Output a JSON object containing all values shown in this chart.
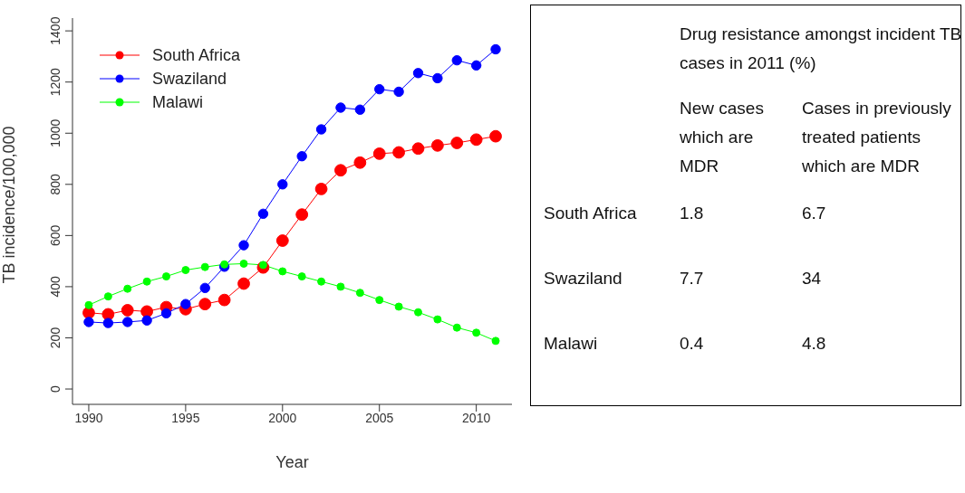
{
  "chart_data": [
    {
      "type": "line",
      "xlabel": "Year",
      "ylabel": "TB incidence/100,000",
      "x": [
        1990,
        1991,
        1992,
        1993,
        1994,
        1995,
        1996,
        1997,
        1998,
        1999,
        2000,
        2001,
        2002,
        2003,
        2004,
        2005,
        2006,
        2007,
        2008,
        2009,
        2010,
        2011
      ],
      "series": [
        {
          "name": "South Africa",
          "color": "#ff0000",
          "values": [
            298,
            292,
            308,
            303,
            320,
            312,
            332,
            348,
            412,
            475,
            580,
            682,
            782,
            855,
            885,
            920,
            925,
            940,
            952,
            962,
            975,
            988
          ]
        },
        {
          "name": "Swaziland",
          "color": "#0000ff",
          "values": [
            262,
            258,
            262,
            268,
            296,
            332,
            395,
            478,
            562,
            685,
            800,
            910,
            1015,
            1100,
            1092,
            1172,
            1162,
            1235,
            1215,
            1285,
            1265,
            1328
          ]
        },
        {
          "name": "Malawi",
          "color": "#00ff00",
          "values": [
            328,
            362,
            392,
            420,
            440,
            465,
            477,
            487,
            490,
            485,
            460,
            440,
            420,
            400,
            376,
            348,
            322,
            300,
            272,
            240,
            220,
            188
          ]
        }
      ],
      "xlim": [
        1989.16,
        2011.84
      ],
      "xticks": [
        1990,
        1995,
        2000,
        2005,
        2010
      ],
      "ylim": [
        -60,
        1450
      ],
      "yticks": [
        0,
        200,
        400,
        600,
        800,
        1000,
        1200,
        1400
      ],
      "grid": false,
      "legend": "top left",
      "marker": "circle",
      "line_style": "solid"
    },
    {
      "type": "other",
      "title": "Drug resistance amongst incident TB cases in 2011 (%)",
      "categories": [
        "South Africa",
        "Swaziland",
        "Malawi"
      ],
      "series": [
        {
          "name": "New cases which are MDR",
          "values": [
            1.8,
            7.7,
            0.4
          ]
        },
        {
          "name": "Cases in previously treated patients which are MDR",
          "values": [
            6.7,
            34,
            4.8
          ]
        }
      ],
      "data_labels": true
    }
  ]
}
